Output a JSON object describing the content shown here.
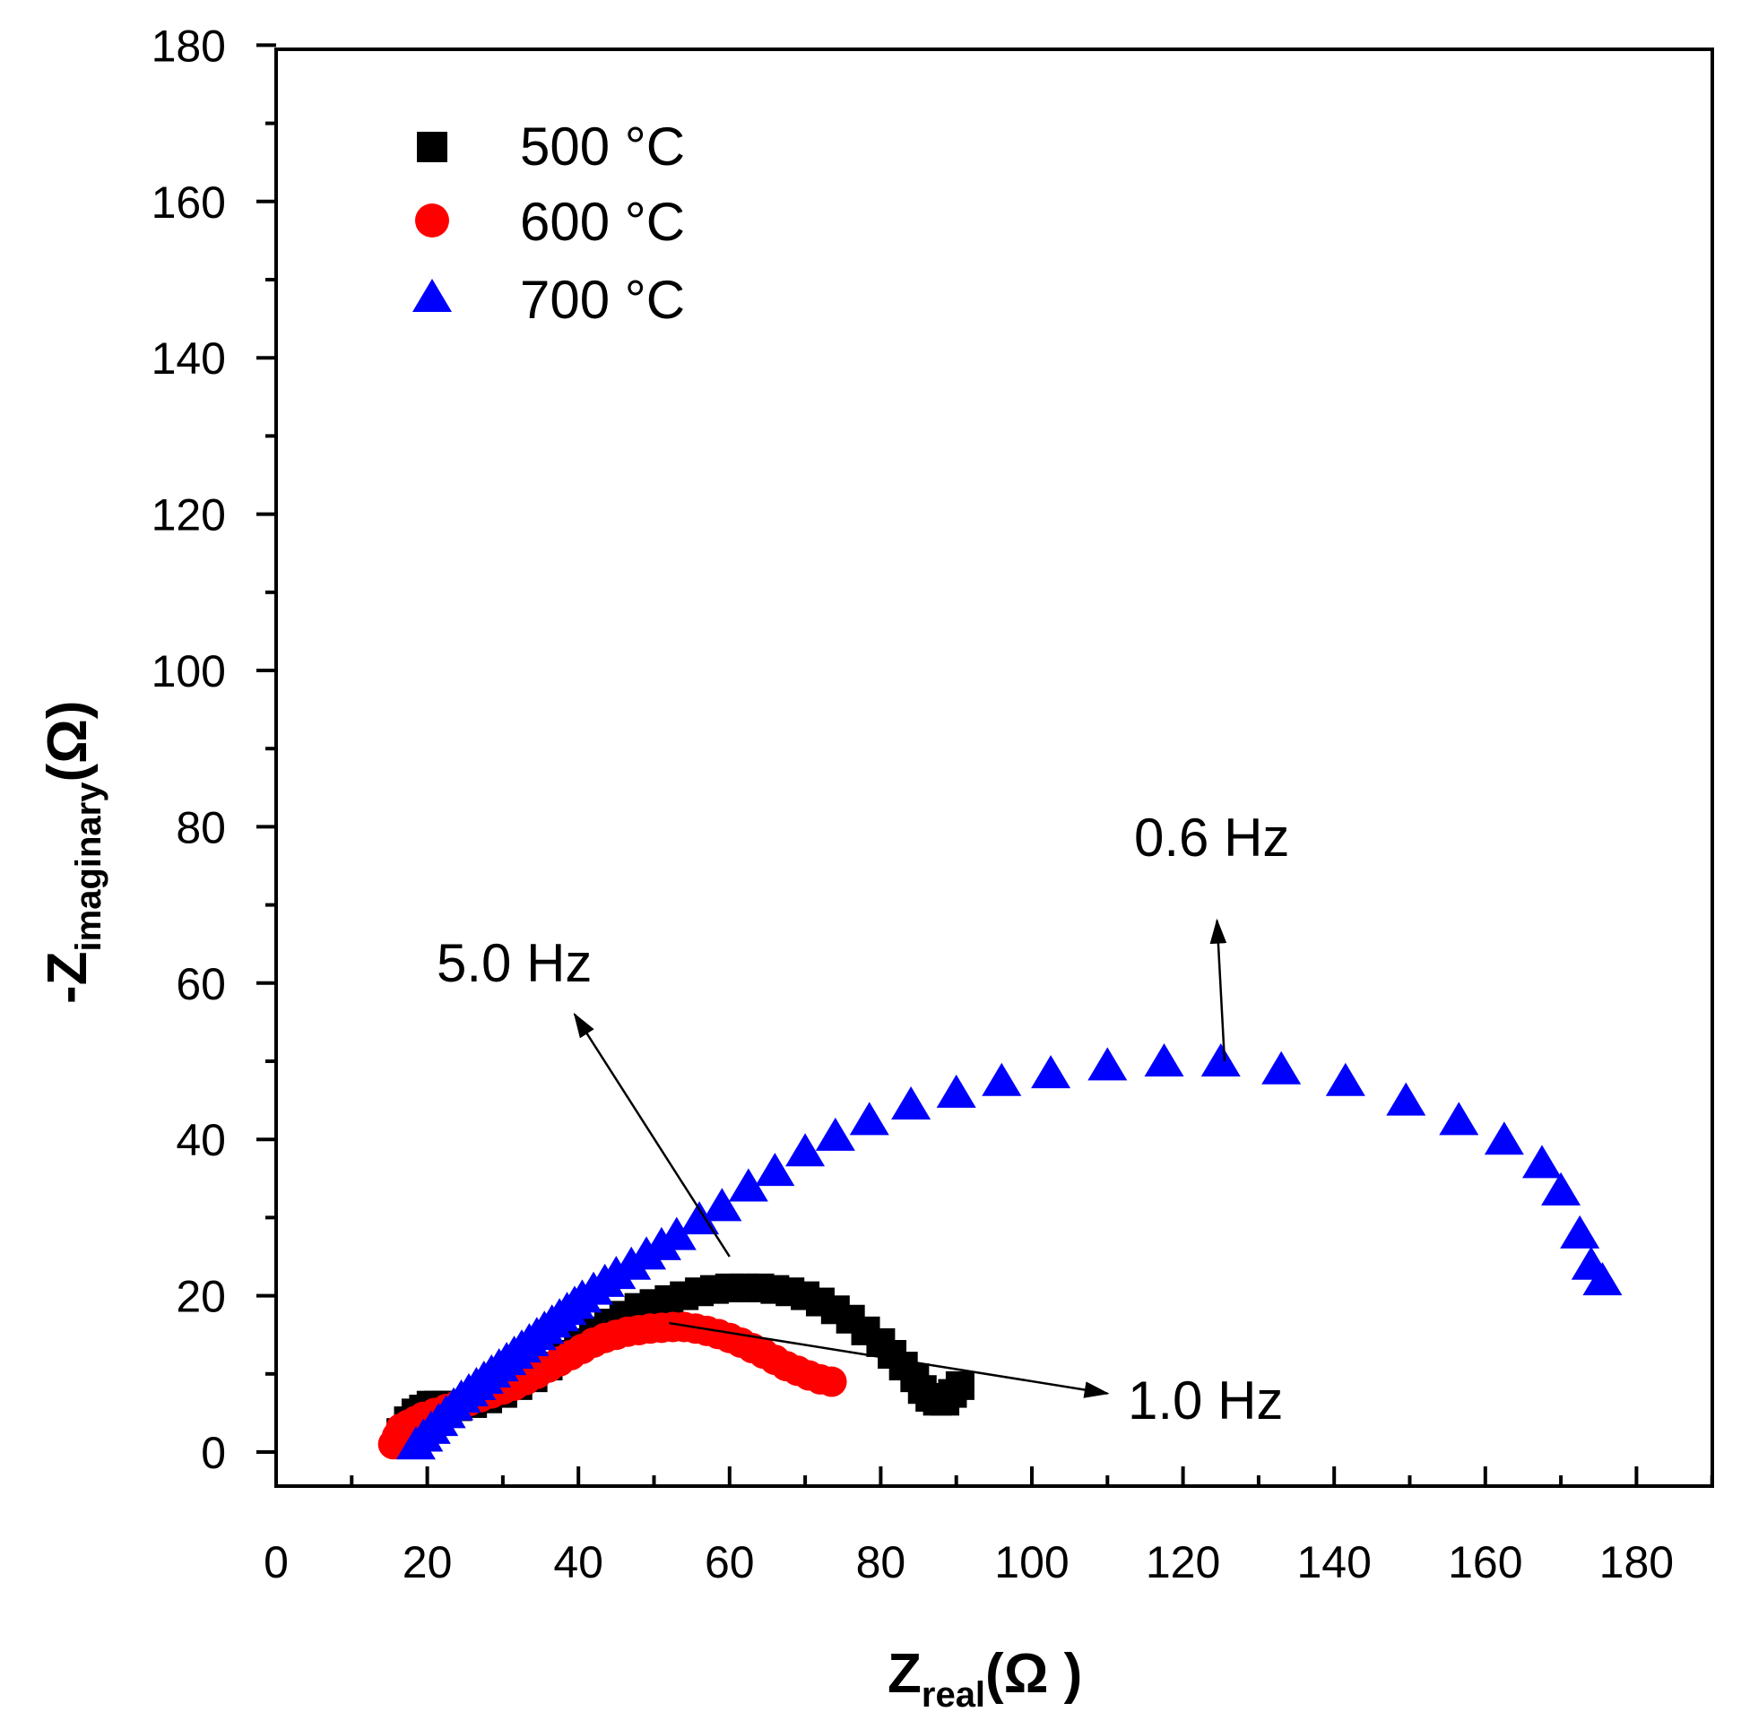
{
  "chart_data": {
    "type": "scatter",
    "title": "",
    "xlabel": {
      "main": "Z",
      "sub": "real",
      "unit": "(Ω )"
    },
    "ylabel": {
      "main": "-Z",
      "sub": "imaginary",
      "unit": "(Ω)"
    },
    "xlim": [
      0,
      190
    ],
    "ylim": [
      -5,
      180
    ],
    "xticks": [
      0,
      20,
      40,
      60,
      80,
      100,
      120,
      140,
      160,
      180
    ],
    "yticks": [
      0,
      20,
      40,
      60,
      80,
      100,
      120,
      140,
      160,
      180
    ],
    "grid": false,
    "legend_position": "top-left",
    "series": [
      {
        "name": "500 °C",
        "marker": "square",
        "color": "#000000",
        "x": [
          16.5,
          17.5,
          18.5,
          19.5,
          20.5,
          21.5,
          22.5,
          24,
          26,
          28,
          30,
          32,
          34,
          36,
          38,
          40,
          42,
          44,
          46,
          48,
          50,
          52,
          54,
          56,
          58,
          60,
          62,
          64,
          66,
          68,
          70,
          72,
          74,
          76,
          78,
          80,
          81.5,
          83,
          84.5,
          85.5,
          86.5,
          87.5,
          88.5,
          89.5,
          90.5
        ],
        "y": [
          2.5,
          4,
          5,
          5.5,
          6,
          6,
          6,
          5.8,
          6.2,
          6.8,
          7.5,
          8.5,
          9.5,
          11,
          12.5,
          14,
          15.5,
          16.5,
          17.5,
          18.5,
          19,
          19.5,
          20,
          20.5,
          20.8,
          21,
          21,
          21,
          20.8,
          20.5,
          20,
          19.2,
          18.2,
          17,
          15.5,
          14,
          12.5,
          11,
          9.5,
          8,
          7,
          6.5,
          6.5,
          7.5,
          8.5
        ]
      },
      {
        "name": "600 °C",
        "marker": "circle",
        "color": "#ff0000",
        "x": [
          15.5,
          16,
          16.5,
          17.5,
          18.5,
          19.5,
          21,
          22.5,
          24,
          25.5,
          27,
          28.5,
          30,
          31.5,
          33,
          34.5,
          36,
          37.5,
          39,
          40.5,
          42,
          43.5,
          45,
          46.5,
          48,
          49.5,
          51,
          52.5,
          54,
          55.5,
          57,
          58.5,
          60,
          61.5,
          63,
          64.5,
          66,
          67.5,
          69,
          70.5,
          72,
          73.5
        ],
        "y": [
          1,
          2,
          3,
          3.5,
          4,
          4.5,
          5,
          5.5,
          6,
          6.5,
          7,
          7.5,
          8,
          8.5,
          9.2,
          10,
          10.8,
          11.6,
          12.4,
          13.2,
          14,
          14.6,
          15,
          15.4,
          15.6,
          15.8,
          15.9,
          16,
          16,
          15.8,
          15.5,
          15.1,
          14.6,
          14,
          13.3,
          12.6,
          11.8,
          11,
          10.4,
          9.8,
          9.3,
          9
        ]
      },
      {
        "name": "700 °C",
        "marker": "triangle",
        "color": "#0000ff",
        "x": [
          18.5,
          19.5,
          20.5,
          21.5,
          22.5,
          23.5,
          24.5,
          25.5,
          26.5,
          27.5,
          28.5,
          29.5,
          30.5,
          31.5,
          32.5,
          33.5,
          34.5,
          35.5,
          36.5,
          37.5,
          38.5,
          39.5,
          40.5,
          42,
          43.5,
          45,
          47,
          49,
          51,
          53,
          56,
          59,
          62.5,
          66,
          70,
          74,
          78.5,
          84,
          90,
          96,
          102.5,
          110,
          117.5,
          125,
          133,
          141.5,
          149.5,
          156.5,
          162.5,
          167.5,
          170,
          172.5,
          174,
          175.5
        ],
        "y": [
          1,
          2,
          3,
          4,
          5,
          6,
          7,
          7.8,
          8.6,
          9.4,
          10.2,
          11,
          11.8,
          12.6,
          13.4,
          14.2,
          15,
          15.8,
          16.6,
          17.4,
          18.2,
          19,
          19.8,
          20.8,
          21.8,
          22.8,
          24,
          25.3,
          26.5,
          27.8,
          29.8,
          31.5,
          34,
          36,
          38.5,
          40.5,
          42.5,
          44.5,
          46,
          47.5,
          48.5,
          49.5,
          50,
          50,
          49,
          47.5,
          45,
          42.5,
          40,
          37,
          33.5,
          28,
          24,
          22
        ]
      }
    ],
    "annotations": [
      {
        "text": "0.6 Hz",
        "arrow_from": [
          125.5,
          50
        ],
        "arrow_to": [
          124.5,
          68
        ]
      },
      {
        "text": "5.0 Hz",
        "arrow_from": [
          60,
          25
        ],
        "arrow_to": [
          39.5,
          56
        ]
      },
      {
        "text": "1.0 Hz",
        "arrow_from": [
          52,
          16.5
        ],
        "arrow_to": [
          110,
          7.5
        ]
      }
    ]
  }
}
